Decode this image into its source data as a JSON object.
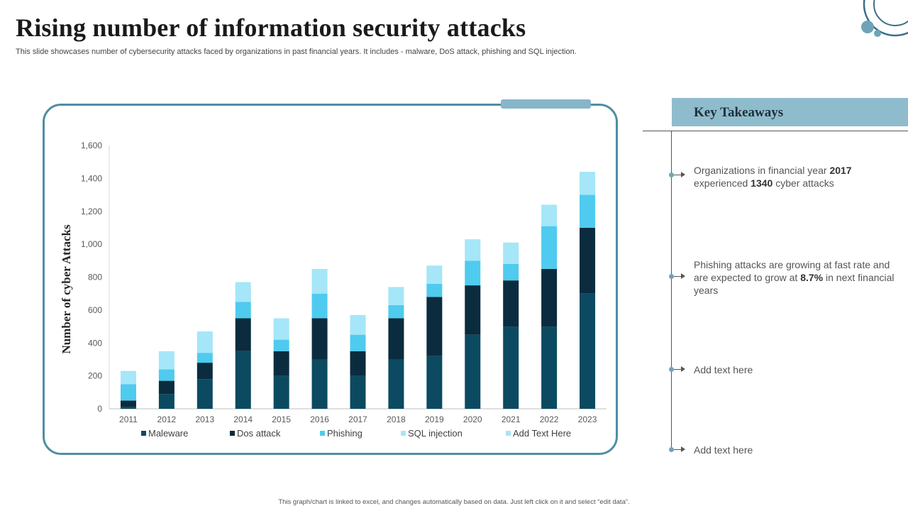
{
  "slide": {
    "title": "Rising number of information security attacks",
    "subtitle": "This slide showcases number of cybersecurity attacks faced by organizations in past financial years. It includes - malware, DoS attack, phishing and SQL injection.",
    "footnote": "This graph/chart is linked to excel, and changes automatically based on data. Just left click on it and select “edit data”."
  },
  "takeaways": {
    "title": "Key Takeaways",
    "item1": {
      "p1": "Organizations in financial year ",
      "b1": "2017",
      "p2": " experienced ",
      "b2": "1340",
      "p3": " cyber attacks"
    },
    "item2": {
      "p1": "Phishing attacks are growing at fast rate and are expected to grow at ",
      "b1": "8.7%",
      "p2": " in next financial years"
    },
    "item3": "Add text here",
    "item4": "Add text here"
  },
  "colors": {
    "malware": "#0b4a61",
    "dos": "#0a2c3e",
    "phishing": "#4ecbef",
    "sql": "#a5e6f8",
    "addtext": "#a5e6f8",
    "frame": "#4f8da5",
    "header": "#8fbccc"
  },
  "chart_data": {
    "type": "bar",
    "stacked": true,
    "title": "",
    "xlabel": "",
    "ylabel": "Number of cyber Attacks",
    "ylim": [
      0,
      1600
    ],
    "yticks": [
      0,
      200,
      400,
      600,
      800,
      1000,
      1200,
      1400,
      1600
    ],
    "ytick_labels": [
      "0",
      "200",
      "400",
      "600",
      "800",
      "1,000",
      "1,200",
      "1,400",
      "1,600"
    ],
    "categories": [
      "2011",
      "2012",
      "2013",
      "2014",
      "2015",
      "2016",
      "2017",
      "2018",
      "2019",
      "2020",
      "2021",
      "2022",
      "2023"
    ],
    "series": [
      {
        "name": "Maleware",
        "color_key": "malware",
        "values": [
          10,
          90,
          180,
          350,
          200,
          300,
          200,
          300,
          320,
          450,
          500,
          500,
          700
        ]
      },
      {
        "name": "Dos attack",
        "color_key": "dos",
        "values": [
          40,
          80,
          100,
          200,
          150,
          250,
          150,
          250,
          360,
          300,
          280,
          350,
          400
        ]
      },
      {
        "name": "Phishing",
        "color_key": "phishing",
        "values": [
          100,
          70,
          60,
          100,
          70,
          150,
          100,
          80,
          80,
          150,
          100,
          260,
          200
        ]
      },
      {
        "name": "SQL injection",
        "color_key": "sql",
        "values": [
          80,
          110,
          130,
          120,
          130,
          150,
          120,
          110,
          110,
          130,
          130,
          130,
          140
        ]
      },
      {
        "name": "Add Text Here",
        "color_key": "addtext",
        "values": [
          0,
          0,
          0,
          0,
          0,
          0,
          0,
          0,
          0,
          0,
          0,
          0,
          0
        ]
      }
    ],
    "legend_position": "bottom"
  }
}
